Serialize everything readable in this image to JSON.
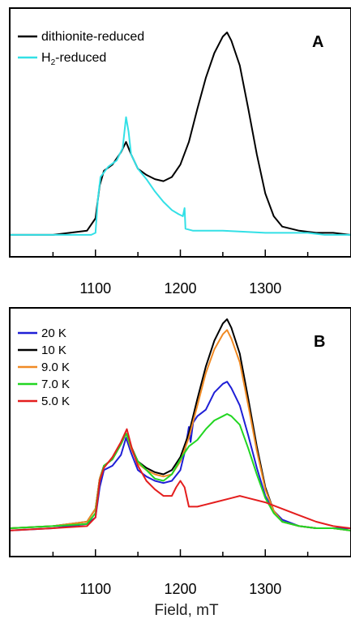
{
  "figure": {
    "xlabel": "Field, mT"
  },
  "chart_data": [
    {
      "type": "line",
      "panel_label": "A",
      "xlim": [
        1000,
        1400
      ],
      "ylim": [
        0,
        1
      ],
      "x_ticks": [
        1100,
        1200,
        1300
      ],
      "x_tick_labels": [
        "1100",
        "1200",
        "1300"
      ],
      "grid": false,
      "legend_position": "top-left",
      "series": [
        {
          "name": "dithionite-reduced",
          "legend": {
            "before": "dithionite-reduced",
            "sub": "",
            "after": ""
          },
          "color": "#000000",
          "points": [
            [
              1000,
              0.02
            ],
            [
              1050,
              0.02
            ],
            [
              1090,
              0.04
            ],
            [
              1100,
              0.1
            ],
            [
              1105,
              0.26
            ],
            [
              1110,
              0.33
            ],
            [
              1120,
              0.36
            ],
            [
              1130,
              0.42
            ],
            [
              1136,
              0.47
            ],
            [
              1142,
              0.41
            ],
            [
              1150,
              0.34
            ],
            [
              1160,
              0.31
            ],
            [
              1170,
              0.29
            ],
            [
              1180,
              0.28
            ],
            [
              1190,
              0.3
            ],
            [
              1200,
              0.36
            ],
            [
              1210,
              0.47
            ],
            [
              1220,
              0.63
            ],
            [
              1230,
              0.78
            ],
            [
              1240,
              0.9
            ],
            [
              1250,
              0.98
            ],
            [
              1255,
              1.0
            ],
            [
              1260,
              0.96
            ],
            [
              1270,
              0.84
            ],
            [
              1280,
              0.63
            ],
            [
              1290,
              0.41
            ],
            [
              1300,
              0.22
            ],
            [
              1310,
              0.11
            ],
            [
              1320,
              0.06
            ],
            [
              1340,
              0.04
            ],
            [
              1360,
              0.03
            ],
            [
              1380,
              0.03
            ],
            [
              1400,
              0.02
            ]
          ]
        },
        {
          "name": "H2-reduced",
          "legend": {
            "before": "H",
            "sub": "2",
            "after": "-reduced"
          },
          "color": "#33e0e6",
          "points": [
            [
              1000,
              0.02
            ],
            [
              1050,
              0.02
            ],
            [
              1095,
              0.02
            ],
            [
              1100,
              0.03
            ],
            [
              1103,
              0.2
            ],
            [
              1106,
              0.3
            ],
            [
              1115,
              0.35
            ],
            [
              1125,
              0.38
            ],
            [
              1132,
              0.44
            ],
            [
              1136,
              0.59
            ],
            [
              1139,
              0.52
            ],
            [
              1142,
              0.41
            ],
            [
              1150,
              0.34
            ],
            [
              1160,
              0.29
            ],
            [
              1170,
              0.23
            ],
            [
              1180,
              0.18
            ],
            [
              1190,
              0.14
            ],
            [
              1198,
              0.12
            ],
            [
              1203,
              0.11
            ],
            [
              1205,
              0.15
            ],
            [
              1206,
              0.05
            ],
            [
              1215,
              0.04
            ],
            [
              1250,
              0.04
            ],
            [
              1300,
              0.03
            ],
            [
              1350,
              0.03
            ],
            [
              1370,
              0.02
            ],
            [
              1400,
              0.02
            ]
          ]
        }
      ]
    },
    {
      "type": "line",
      "panel_label": "B",
      "xlim": [
        1000,
        1400
      ],
      "ylim": [
        0,
        1
      ],
      "x_ticks": [
        1100,
        1200,
        1300
      ],
      "x_tick_labels": [
        "1100",
        "1200",
        "1300"
      ],
      "grid": false,
      "legend_position": "top-left",
      "series": [
        {
          "name": "20 K",
          "color": "#1f1fd6",
          "points": [
            [
              1000,
              0.02
            ],
            [
              1050,
              0.03
            ],
            [
              1090,
              0.05
            ],
            [
              1100,
              0.08
            ],
            [
              1105,
              0.22
            ],
            [
              1110,
              0.3
            ],
            [
              1120,
              0.32
            ],
            [
              1130,
              0.37
            ],
            [
              1136,
              0.45
            ],
            [
              1142,
              0.38
            ],
            [
              1150,
              0.3
            ],
            [
              1160,
              0.27
            ],
            [
              1170,
              0.25
            ],
            [
              1180,
              0.24
            ],
            [
              1190,
              0.25
            ],
            [
              1200,
              0.3
            ],
            [
              1205,
              0.38
            ],
            [
              1210,
              0.5
            ],
            [
              1212,
              0.43
            ],
            [
              1215,
              0.52
            ],
            [
              1220,
              0.55
            ],
            [
              1230,
              0.58
            ],
            [
              1240,
              0.66
            ],
            [
              1250,
              0.7
            ],
            [
              1255,
              0.71
            ],
            [
              1260,
              0.68
            ],
            [
              1270,
              0.6
            ],
            [
              1280,
              0.46
            ],
            [
              1290,
              0.31
            ],
            [
              1300,
              0.18
            ],
            [
              1310,
              0.11
            ],
            [
              1320,
              0.07
            ],
            [
              1340,
              0.04
            ],
            [
              1360,
              0.03
            ],
            [
              1380,
              0.03
            ],
            [
              1400,
              0.03
            ]
          ]
        },
        {
          "name": "10 K",
          "color": "#000000",
          "points": [
            [
              1000,
              0.03
            ],
            [
              1050,
              0.04
            ],
            [
              1090,
              0.06
            ],
            [
              1100,
              0.12
            ],
            [
              1105,
              0.26
            ],
            [
              1110,
              0.32
            ],
            [
              1120,
              0.35
            ],
            [
              1130,
              0.42
            ],
            [
              1136,
              0.47
            ],
            [
              1142,
              0.41
            ],
            [
              1150,
              0.34
            ],
            [
              1160,
              0.31
            ],
            [
              1170,
              0.29
            ],
            [
              1180,
              0.28
            ],
            [
              1190,
              0.3
            ],
            [
              1200,
              0.36
            ],
            [
              1210,
              0.47
            ],
            [
              1220,
              0.63
            ],
            [
              1230,
              0.78
            ],
            [
              1240,
              0.9
            ],
            [
              1250,
              0.98
            ],
            [
              1255,
              1.0
            ],
            [
              1260,
              0.96
            ],
            [
              1270,
              0.84
            ],
            [
              1280,
              0.63
            ],
            [
              1290,
              0.41
            ],
            [
              1300,
              0.22
            ],
            [
              1310,
              0.11
            ],
            [
              1320,
              0.06
            ],
            [
              1340,
              0.04
            ],
            [
              1360,
              0.03
            ],
            [
              1380,
              0.03
            ],
            [
              1400,
              0.02
            ]
          ]
        },
        {
          "name": "9.0 K",
          "color": "#f08a24",
          "points": [
            [
              1000,
              0.03
            ],
            [
              1050,
              0.04
            ],
            [
              1090,
              0.06
            ],
            [
              1100,
              0.12
            ],
            [
              1105,
              0.26
            ],
            [
              1110,
              0.32
            ],
            [
              1120,
              0.35
            ],
            [
              1130,
              0.42
            ],
            [
              1136,
              0.47
            ],
            [
              1142,
              0.4
            ],
            [
              1150,
              0.33
            ],
            [
              1160,
              0.3
            ],
            [
              1170,
              0.28
            ],
            [
              1180,
              0.27
            ],
            [
              1190,
              0.28
            ],
            [
              1200,
              0.34
            ],
            [
              1210,
              0.45
            ],
            [
              1220,
              0.6
            ],
            [
              1230,
              0.75
            ],
            [
              1240,
              0.86
            ],
            [
              1250,
              0.93
            ],
            [
              1255,
              0.95
            ],
            [
              1260,
              0.91
            ],
            [
              1270,
              0.8
            ],
            [
              1280,
              0.6
            ],
            [
              1290,
              0.39
            ],
            [
              1300,
              0.21
            ],
            [
              1310,
              0.11
            ],
            [
              1320,
              0.06
            ],
            [
              1340,
              0.04
            ],
            [
              1360,
              0.03
            ],
            [
              1380,
              0.03
            ],
            [
              1400,
              0.02
            ]
          ]
        },
        {
          "name": "7.0 K",
          "color": "#22d622",
          "points": [
            [
              1000,
              0.03
            ],
            [
              1050,
              0.04
            ],
            [
              1090,
              0.05
            ],
            [
              1100,
              0.1
            ],
            [
              1105,
              0.25
            ],
            [
              1110,
              0.32
            ],
            [
              1120,
              0.35
            ],
            [
              1130,
              0.42
            ],
            [
              1136,
              0.47
            ],
            [
              1142,
              0.41
            ],
            [
              1150,
              0.34
            ],
            [
              1160,
              0.3
            ],
            [
              1170,
              0.26
            ],
            [
              1180,
              0.25
            ],
            [
              1190,
              0.28
            ],
            [
              1200,
              0.35
            ],
            [
              1210,
              0.41
            ],
            [
              1220,
              0.44
            ],
            [
              1230,
              0.49
            ],
            [
              1240,
              0.53
            ],
            [
              1250,
              0.55
            ],
            [
              1255,
              0.56
            ],
            [
              1260,
              0.55
            ],
            [
              1270,
              0.51
            ],
            [
              1280,
              0.4
            ],
            [
              1290,
              0.28
            ],
            [
              1300,
              0.17
            ],
            [
              1310,
              0.1
            ],
            [
              1320,
              0.06
            ],
            [
              1340,
              0.04
            ],
            [
              1360,
              0.03
            ],
            [
              1380,
              0.03
            ],
            [
              1400,
              0.02
            ]
          ]
        },
        {
          "name": "5.0 K",
          "color": "#e41e1e",
          "points": [
            [
              1000,
              0.02
            ],
            [
              1050,
              0.03
            ],
            [
              1090,
              0.04
            ],
            [
              1100,
              0.08
            ],
            [
              1105,
              0.25
            ],
            [
              1110,
              0.31
            ],
            [
              1120,
              0.36
            ],
            [
              1130,
              0.43
            ],
            [
              1137,
              0.49
            ],
            [
              1143,
              0.4
            ],
            [
              1150,
              0.32
            ],
            [
              1160,
              0.25
            ],
            [
              1170,
              0.21
            ],
            [
              1180,
              0.18
            ],
            [
              1190,
              0.18
            ],
            [
              1195,
              0.22
            ],
            [
              1200,
              0.25
            ],
            [
              1205,
              0.22
            ],
            [
              1210,
              0.13
            ],
            [
              1220,
              0.13
            ],
            [
              1240,
              0.15
            ],
            [
              1260,
              0.17
            ],
            [
              1270,
              0.18
            ],
            [
              1280,
              0.17
            ],
            [
              1300,
              0.15
            ],
            [
              1320,
              0.12
            ],
            [
              1340,
              0.09
            ],
            [
              1360,
              0.06
            ],
            [
              1380,
              0.04
            ],
            [
              1400,
              0.03
            ]
          ]
        }
      ]
    }
  ]
}
